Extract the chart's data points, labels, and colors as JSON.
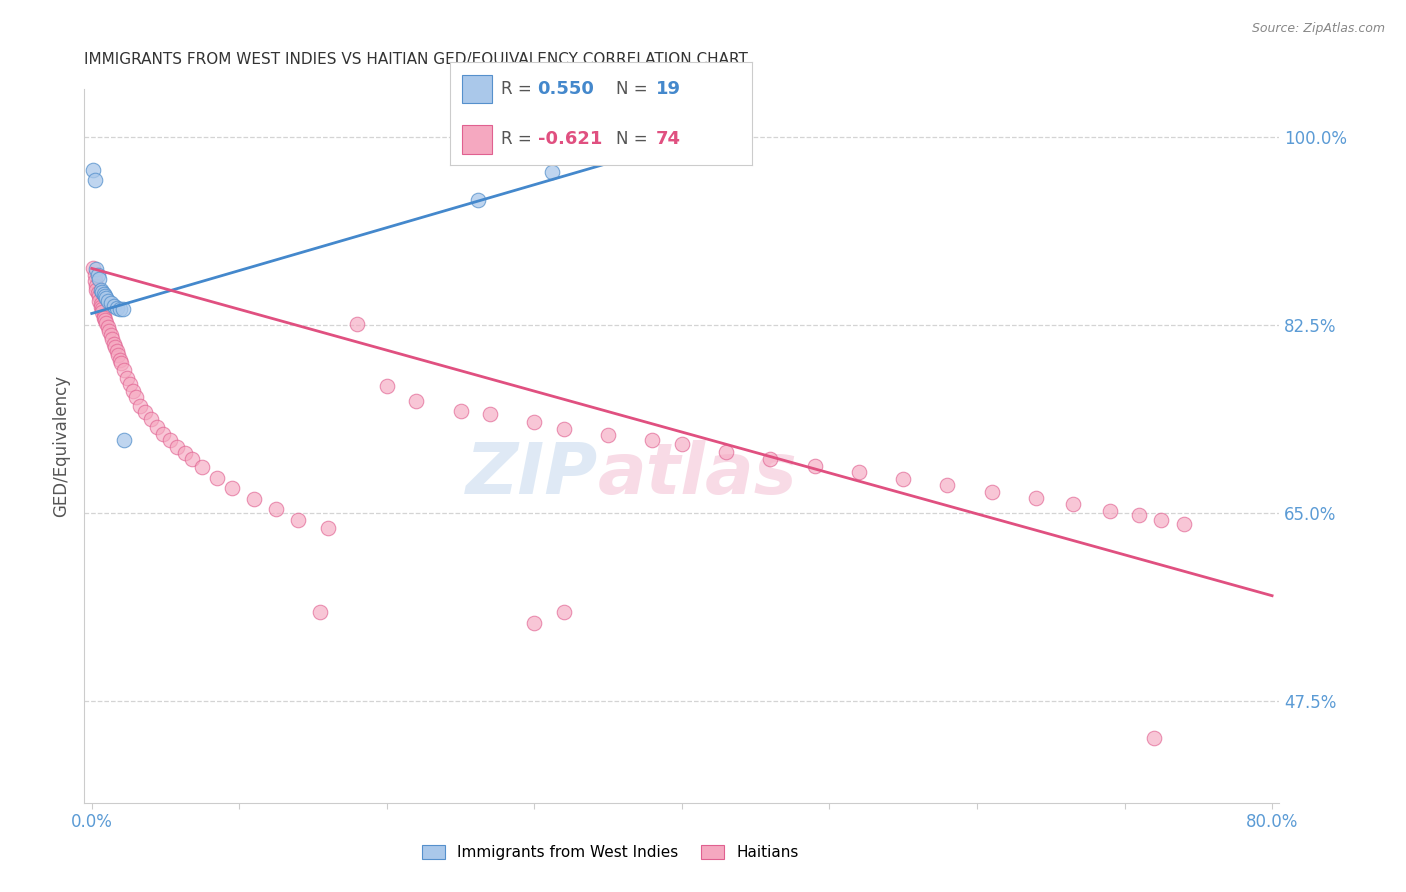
{
  "title": "IMMIGRANTS FROM WEST INDIES VS HAITIAN GED/EQUIVALENCY CORRELATION CHART",
  "source": "Source: ZipAtlas.com",
  "ylabel": "GED/Equivalency",
  "xlim": [
    -0.005,
    0.805
  ],
  "ylim": [
    0.38,
    1.045
  ],
  "ytick_vals": [
    0.475,
    0.65,
    0.825,
    1.0
  ],
  "ytick_labels": [
    "47.5%",
    "65.0%",
    "82.5%",
    "100.0%"
  ],
  "xtick_vals": [
    0.0,
    0.1,
    0.2,
    0.3,
    0.4,
    0.5,
    0.6,
    0.7,
    0.8
  ],
  "xtick_labels": [
    "0.0%",
    "",
    "",
    "",
    "",
    "",
    "",
    "",
    "80.0%"
  ],
  "blue_R": 0.55,
  "blue_N": 19,
  "pink_R": -0.621,
  "pink_N": 74,
  "blue_color": "#aac8ea",
  "pink_color": "#f5a8c0",
  "blue_edge": "#5590cc",
  "pink_edge": "#e06090",
  "blue_line": "#4488cc",
  "pink_line": "#e05080",
  "axis_color": "#5b9bd5",
  "grid_color": "#d0d0d0",
  "title_color": "#333333",
  "legend_label_blue": "Immigrants from West Indies",
  "legend_label_pink": "Haitians",
  "blue_line_x": [
    0.0,
    0.355
  ],
  "blue_line_y": [
    0.836,
    0.978
  ],
  "pink_line_x": [
    0.0,
    0.8
  ],
  "pink_line_y": [
    0.878,
    0.573
  ],
  "blue_x": [
    0.001,
    0.002,
    0.003,
    0.004,
    0.005,
    0.006,
    0.007,
    0.008,
    0.009,
    0.01,
    0.011,
    0.013,
    0.015,
    0.017,
    0.019,
    0.021,
    0.022,
    0.262,
    0.312
  ],
  "blue_y": [
    0.97,
    0.96,
    0.877,
    0.872,
    0.868,
    0.858,
    0.856,
    0.854,
    0.852,
    0.85,
    0.848,
    0.846,
    0.843,
    0.841,
    0.84,
    0.84,
    0.718,
    0.942,
    0.968
  ],
  "pink_x": [
    0.001,
    0.002,
    0.002,
    0.003,
    0.003,
    0.004,
    0.005,
    0.005,
    0.006,
    0.006,
    0.007,
    0.007,
    0.008,
    0.008,
    0.009,
    0.01,
    0.011,
    0.012,
    0.013,
    0.014,
    0.015,
    0.016,
    0.017,
    0.018,
    0.019,
    0.02,
    0.022,
    0.024,
    0.026,
    0.028,
    0.03,
    0.033,
    0.036,
    0.04,
    0.044,
    0.048,
    0.053,
    0.058,
    0.063,
    0.068,
    0.075,
    0.085,
    0.095,
    0.11,
    0.125,
    0.14,
    0.16,
    0.18,
    0.2,
    0.22,
    0.25,
    0.27,
    0.3,
    0.32,
    0.35,
    0.38,
    0.4,
    0.43,
    0.46,
    0.49,
    0.52,
    0.55,
    0.58,
    0.61,
    0.64,
    0.665,
    0.69,
    0.71,
    0.725,
    0.74,
    0.155,
    0.3,
    0.32,
    0.72
  ],
  "pink_y": [
    0.878,
    0.872,
    0.866,
    0.862,
    0.858,
    0.855,
    0.852,
    0.848,
    0.845,
    0.842,
    0.84,
    0.837,
    0.834,
    0.832,
    0.83,
    0.827,
    0.823,
    0.82,
    0.816,
    0.812,
    0.808,
    0.805,
    0.801,
    0.797,
    0.793,
    0.79,
    0.783,
    0.776,
    0.77,
    0.764,
    0.758,
    0.75,
    0.744,
    0.738,
    0.73,
    0.724,
    0.718,
    0.712,
    0.706,
    0.7,
    0.693,
    0.683,
    0.673,
    0.663,
    0.654,
    0.644,
    0.636,
    0.826,
    0.768,
    0.754,
    0.745,
    0.742,
    0.735,
    0.728,
    0.723,
    0.718,
    0.714,
    0.707,
    0.7,
    0.694,
    0.688,
    0.682,
    0.676,
    0.67,
    0.664,
    0.658,
    0.652,
    0.648,
    0.644,
    0.64,
    0.558,
    0.548,
    0.558,
    0.44
  ]
}
